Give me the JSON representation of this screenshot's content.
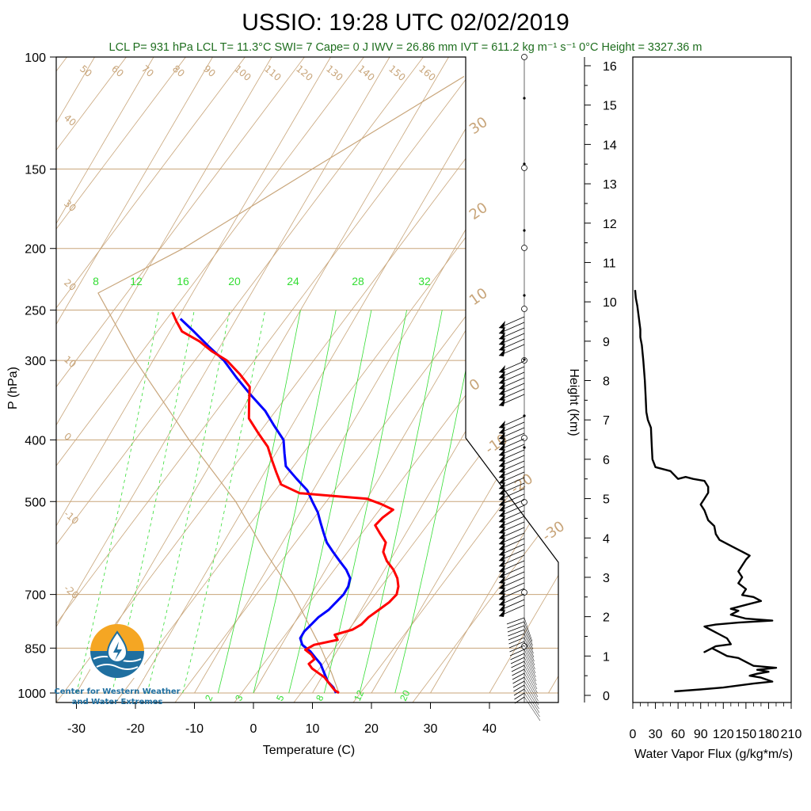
{
  "title": "USSIO: 19:28 UTC 02/02/2019",
  "info_line": "LCL P= 931 hPa  LCL T= 11.3°C  SWI= 7  Cape= 0 J  IWV = 26.86 mm  IVT = 611.2 kg m⁻¹ s⁻¹  0°C Height = 3327.36 m",
  "logo": {
    "line1": "Center for Western Weather",
    "line2": "and Water Extremes"
  },
  "colors": {
    "temperature": "#ff0000",
    "dewpoint": "#0000ff",
    "dry_adiabat": "#c8a57a",
    "mixing_ratio": "#33dd33",
    "info_text": "#1e6e1e"
  },
  "chart_data": [
    {
      "type": "line",
      "subtype": "skew-t",
      "xlabel": "Temperature (C)",
      "ylabel": "P (hPa)",
      "x_ticks": [
        "-30",
        "-20",
        "-10",
        "0",
        "10",
        "20",
        "30",
        "40"
      ],
      "y_ticks": [
        "100",
        "150",
        "200",
        "250",
        "300",
        "400",
        "500",
        "700",
        "850",
        "1000"
      ],
      "isotherm_labels": [
        "50",
        "60",
        "70",
        "80",
        "90",
        "100",
        "110",
        "120",
        "130",
        "140",
        "150",
        "160"
      ],
      "dry_adiabat_labels": [
        "40",
        "30",
        "20",
        "10",
        "0",
        "-10",
        "-20"
      ],
      "right_labels": [
        "30",
        "20",
        "10",
        "0",
        "-10",
        "-20",
        "-30"
      ],
      "mixing_ratio_top_labels": [
        "8",
        "12",
        "16",
        "20",
        "24",
        "28",
        "32"
      ],
      "mixing_ratio_bottom_labels": [
        "2",
        "3",
        "5",
        "8",
        "12",
        "20"
      ],
      "series": [
        {
          "name": "Temperature",
          "points": [
            [
              1000,
              14.5
            ],
            [
              990,
              13.5
            ],
            [
              975,
              12.5
            ],
            [
              960,
              11.5
            ],
            [
              945,
              10.5
            ],
            [
              930,
              9.0
            ],
            [
              915,
              7.5
            ],
            [
              900,
              6.5
            ],
            [
              885,
              7.0
            ],
            [
              870,
              6.0
            ],
            [
              855,
              4.5
            ],
            [
              840,
              5.5
            ],
            [
              825,
              9.0
            ],
            [
              810,
              8.0
            ],
            [
              795,
              10.5
            ],
            [
              780,
              11.5
            ],
            [
              760,
              12.0
            ],
            [
              740,
              13.0
            ],
            [
              720,
              14.0
            ],
            [
              700,
              14.5
            ],
            [
              680,
              14.0
            ],
            [
              660,
              13.0
            ],
            [
              640,
              11.5
            ],
            [
              620,
              9.5
            ],
            [
              600,
              8.0
            ],
            [
              580,
              7.5
            ],
            [
              560,
              5.5
            ],
            [
              545,
              4.0
            ],
            [
              530,
              4.5
            ],
            [
              515,
              5.5
            ],
            [
              505,
              3.0
            ],
            [
              495,
              0.0
            ],
            [
              490,
              -6.0
            ],
            [
              485,
              -12.0
            ],
            [
              470,
              -16.0
            ],
            [
              450,
              -18.0
            ],
            [
              430,
              -20.0
            ],
            [
              410,
              -22.0
            ],
            [
              390,
              -25.0
            ],
            [
              370,
              -28.0
            ],
            [
              350,
              -29.5
            ],
            [
              330,
              -31.0
            ],
            [
              315,
              -34.0
            ],
            [
              300,
              -37.5
            ],
            [
              290,
              -41.0
            ],
            [
              280,
              -44.0
            ],
            [
              270,
              -48.0
            ],
            [
              260,
              -50.0
            ],
            [
              252,
              -51.5
            ]
          ]
        },
        {
          "name": "Dewpoint",
          "points": [
            [
              1000,
              14.0
            ],
            [
              980,
              13.0
            ],
            [
              960,
              11.5
            ],
            [
              940,
              10.5
            ],
            [
              920,
              9.5
            ],
            [
              900,
              8.5
            ],
            [
              880,
              7.0
            ],
            [
              860,
              5.5
            ],
            [
              840,
              3.5
            ],
            [
              820,
              2.5
            ],
            [
              800,
              2.5
            ],
            [
              780,
              3.0
            ],
            [
              760,
              3.5
            ],
            [
              740,
              4.5
            ],
            [
              720,
              5.0
            ],
            [
              700,
              5.5
            ],
            [
              680,
              5.5
            ],
            [
              660,
              5.0
            ],
            [
              640,
              3.5
            ],
            [
              620,
              1.5
            ],
            [
              600,
              -0.5
            ],
            [
              580,
              -2.5
            ],
            [
              560,
              -4.0
            ],
            [
              540,
              -5.5
            ],
            [
              520,
              -7.0
            ],
            [
              500,
              -9.0
            ],
            [
              480,
              -11.0
            ],
            [
              460,
              -14.0
            ],
            [
              440,
              -17.0
            ],
            [
              420,
              -18.5
            ],
            [
              400,
              -20.0
            ],
            [
              380,
              -23.0
            ],
            [
              360,
              -26.0
            ],
            [
              340,
              -30.0
            ],
            [
              320,
              -34.0
            ],
            [
              300,
              -38.0
            ],
            [
              285,
              -42.0
            ],
            [
              270,
              -46.0
            ],
            [
              258,
              -49.5
            ]
          ]
        },
        {
          "name": "Parcel",
          "points": [
            [
              1000,
              14.5
            ],
            [
              931,
              11.3
            ],
            [
              850,
              7.0
            ],
            [
              700,
              -3.0
            ],
            [
              600,
              -12.0
            ],
            [
              500,
              -22.0
            ],
            [
              400,
              -36.0
            ],
            [
              300,
              -53.0
            ],
            [
              235,
              -66.0
            ],
            [
              200,
              -56.0
            ],
            [
              150,
              -42.0
            ],
            [
              100,
              -22.0
            ]
          ]
        }
      ]
    },
    {
      "type": "line",
      "xlabel": "Water Vapor Flux (g/kg*m/s)",
      "ylabel": "Height (Km)",
      "xlim": [
        0,
        210
      ],
      "ylim": [
        0,
        16
      ],
      "x_ticks": [
        "0",
        "30",
        "60",
        "90",
        "120",
        "150",
        "180",
        "210"
      ],
      "y_ticks": [
        "0",
        "1",
        "2",
        "3",
        "4",
        "5",
        "6",
        "7",
        "8",
        "9",
        "10",
        "11",
        "12",
        "13",
        "14",
        "15",
        "16"
      ],
      "series": [
        {
          "points": [
            [
              55,
              0.1
            ],
            [
              90,
              0.15
            ],
            [
              120,
              0.2
            ],
            [
              140,
              0.25
            ],
            [
              160,
              0.3
            ],
            [
              185,
              0.35
            ],
            [
              170,
              0.45
            ],
            [
              155,
              0.5
            ],
            [
              165,
              0.55
            ],
            [
              180,
              0.6
            ],
            [
              165,
              0.65
            ],
            [
              190,
              0.7
            ],
            [
              160,
              0.75
            ],
            [
              150,
              0.85
            ],
            [
              140,
              0.95
            ],
            [
              125,
              1.0
            ],
            [
              115,
              1.1
            ],
            [
              105,
              1.2
            ],
            [
              95,
              1.1
            ],
            [
              110,
              1.25
            ],
            [
              130,
              1.3
            ],
            [
              125,
              1.45
            ],
            [
              115,
              1.55
            ],
            [
              100,
              1.7
            ],
            [
              95,
              1.75
            ],
            [
              110,
              1.8
            ],
            [
              140,
              1.85
            ],
            [
              185,
              1.9
            ],
            [
              150,
              1.95
            ],
            [
              130,
              2.05
            ],
            [
              140,
              2.15
            ],
            [
              130,
              2.2
            ],
            [
              150,
              2.3
            ],
            [
              170,
              2.4
            ],
            [
              160,
              2.5
            ],
            [
              145,
              2.55
            ],
            [
              150,
              2.7
            ],
            [
              140,
              2.85
            ],
            [
              145,
              3.0
            ],
            [
              140,
              3.15
            ],
            [
              145,
              3.3
            ],
            [
              150,
              3.45
            ],
            [
              155,
              3.55
            ],
            [
              145,
              3.65
            ],
            [
              135,
              3.75
            ],
            [
              125,
              3.85
            ],
            [
              115,
              3.95
            ],
            [
              110,
              4.1
            ],
            [
              108,
              4.3
            ],
            [
              100,
              4.45
            ],
            [
              95,
              4.7
            ],
            [
              90,
              4.85
            ],
            [
              95,
              5.0
            ],
            [
              100,
              5.15
            ],
            [
              100,
              5.3
            ],
            [
              95,
              5.45
            ],
            [
              80,
              5.5
            ],
            [
              70,
              5.55
            ],
            [
              60,
              5.5
            ],
            [
              55,
              5.6
            ],
            [
              50,
              5.7
            ],
            [
              40,
              5.75
            ],
            [
              30,
              5.8
            ],
            [
              26,
              6.0
            ],
            [
              25,
              6.4
            ],
            [
              24,
              6.8
            ],
            [
              20,
              7.0
            ],
            [
              18,
              7.2
            ],
            [
              17,
              7.6
            ],
            [
              16,
              8.0
            ],
            [
              14,
              8.5
            ],
            [
              12,
              8.9
            ],
            [
              10,
              9.1
            ],
            [
              10,
              9.3
            ],
            [
              8,
              9.6
            ],
            [
              6,
              9.9
            ],
            [
              4,
              10.1
            ],
            [
              3,
              10.3
            ]
          ]
        }
      ]
    }
  ]
}
